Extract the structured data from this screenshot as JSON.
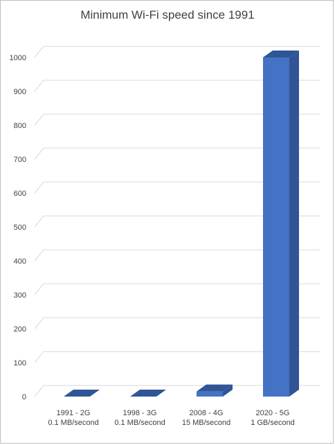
{
  "chart_data": {
    "type": "bar",
    "title": "Minimum Wi-Fi speed since 1991",
    "categories": [
      [
        "1991 - 2G",
        "0.1 MB/second"
      ],
      [
        "1998 - 3G",
        "0.1 MB/second"
      ],
      [
        "2008 - 4G",
        "15 MB/second"
      ],
      [
        "2020 - 5G",
        "1 GB/second"
      ]
    ],
    "values": [
      0.1,
      0.1,
      15,
      1000
    ],
    "ylim": [
      0,
      1000
    ],
    "yticks": [
      0,
      100,
      200,
      300,
      400,
      500,
      600,
      700,
      800,
      900,
      1000
    ],
    "grid": true,
    "legend": "none",
    "style": "3d-column",
    "colors": {
      "front": "#4472c4",
      "top": "#2f5597",
      "side": "#2f5597",
      "grid": "#d9d9d9",
      "text": "#404040"
    }
  }
}
